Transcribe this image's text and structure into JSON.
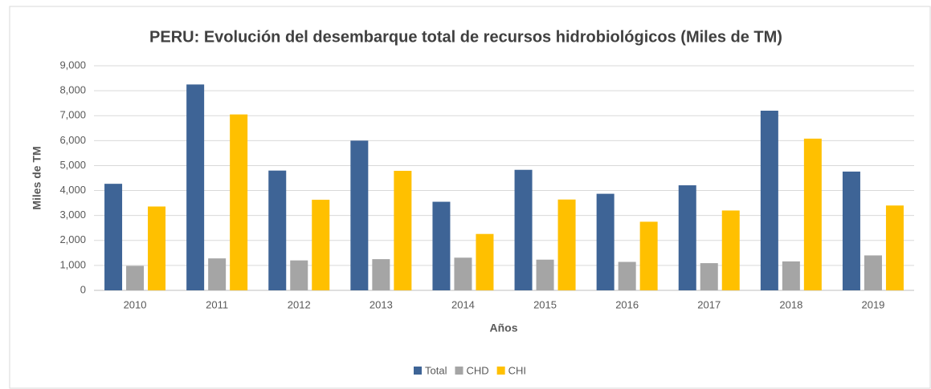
{
  "chart_data": {
    "type": "bar",
    "title": "PERU:  Evolución del desembarque total de recursos hidrobiológicos  (Miles de TM)",
    "x_label": "Años",
    "y_label": "Miles de TM",
    "categories": [
      "2010",
      "2011",
      "2012",
      "2013",
      "2014",
      "2015",
      "2016",
      "2017",
      "2018",
      "2019"
    ],
    "series": [
      {
        "name": "Total",
        "color": "#3e6496",
        "values": [
          4270,
          8250,
          4800,
          6000,
          3550,
          4830,
          3870,
          4210,
          7200,
          4760
        ]
      },
      {
        "name": "CHD",
        "color": "#a5a5a5",
        "values": [
          980,
          1280,
          1200,
          1250,
          1310,
          1230,
          1140,
          1090,
          1160,
          1400
        ]
      },
      {
        "name": "CHI",
        "color": "#ffc000",
        "values": [
          3360,
          7050,
          3630,
          4790,
          2260,
          3640,
          2750,
          3200,
          6080,
          3400
        ]
      }
    ],
    "ylim": [
      0,
      9000
    ],
    "yticks": [
      0,
      {
        "value": 1000,
        "label": "1,000"
      },
      {
        "value": 2000,
        "label": "2,000"
      },
      {
        "value": 3000,
        "label": "3,000"
      },
      {
        "value": 4000,
        "label": "4,000"
      },
      {
        "value": 5000,
        "label": "5,000"
      },
      {
        "value": 6000,
        "label": "6,000"
      },
      {
        "value": 7000,
        "label": "7,000"
      },
      {
        "value": 8000,
        "label": "8,000"
      },
      {
        "value": 9000,
        "label": "9,000"
      }
    ],
    "grid": true,
    "legend": "bottom"
  }
}
